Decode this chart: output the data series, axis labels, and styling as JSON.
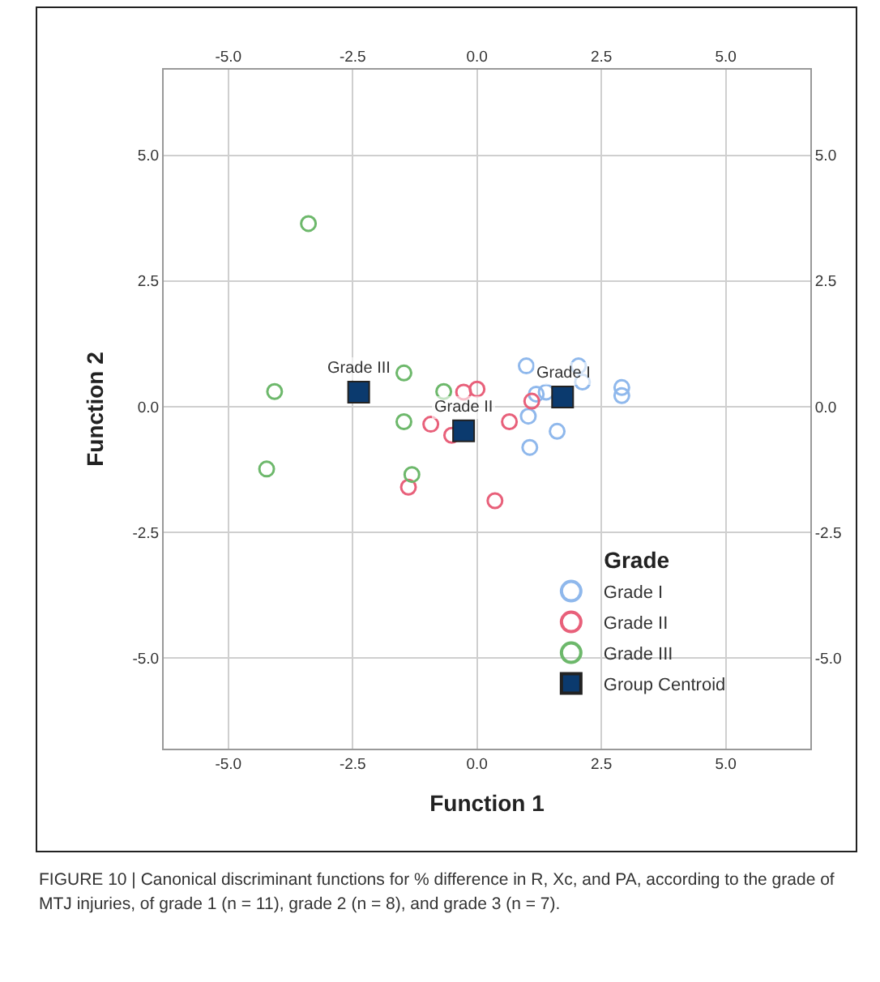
{
  "chart_data": {
    "type": "scatter",
    "xlabel": "Function 1",
    "ylabel": "Function 2",
    "legend_title": "Grade",
    "xlim": [
      -6.3,
      6.7
    ],
    "ylim": [
      -6.8,
      6.7
    ],
    "x2lim": [
      -6.3,
      6.7
    ],
    "y2lim": [
      -6.8,
      6.7
    ],
    "xticks": [
      {
        "value": -5,
        "label": "-5.0"
      },
      {
        "value": -2.5,
        "label": "-2.5"
      },
      {
        "value": 0,
        "label": "0.0"
      },
      {
        "value": 2.5,
        "label": "2.5"
      },
      {
        "value": 5,
        "label": "5.0"
      }
    ],
    "x2ticks": [
      {
        "value": -5,
        "label": "-5.0"
      },
      {
        "value": -2.5,
        "label": "-2.5"
      },
      {
        "value": 0,
        "label": "0.0"
      },
      {
        "value": 2.5,
        "label": "2.5"
      },
      {
        "value": 5,
        "label": "5.0"
      }
    ],
    "yticks": [
      {
        "value": -5,
        "label": "-5.0"
      },
      {
        "value": -2.5,
        "label": "-2.5"
      },
      {
        "value": 0,
        "label": "0.0"
      },
      {
        "value": 2.5,
        "label": "2.5"
      },
      {
        "value": 5,
        "label": "5.0"
      }
    ],
    "y2ticks": [
      {
        "value": -5,
        "label": "-5.0"
      },
      {
        "value": -2.5,
        "label": "-2.5"
      },
      {
        "value": 0,
        "label": "0.0"
      },
      {
        "value": 2.5,
        "label": "2.5"
      },
      {
        "value": 5,
        "label": "5.0"
      }
    ],
    "grid": true,
    "legend": "bottom right",
    "series": [
      {
        "name": "Grade I",
        "color": "#8fb8ec",
        "marker": "circle",
        "x": [
          0.99,
          1.19,
          1.39,
          2.04,
          2.12,
          2.91,
          2.91,
          1.03,
          1.61,
          1.06
        ],
        "values": [
          0.81,
          0.25,
          0.29,
          0.81,
          0.49,
          0.38,
          0.22,
          -0.19,
          -0.49,
          -0.81
        ]
      },
      {
        "name": "Grade II",
        "color": "#e8607a",
        "marker": "circle",
        "x": [
          -0.27,
          0.0,
          -0.93,
          -0.51,
          -1.38,
          0.36,
          0.65,
          1.1
        ],
        "values": [
          0.29,
          0.35,
          -0.35,
          -0.57,
          -1.6,
          -1.87,
          -0.3,
          0.11
        ]
      },
      {
        "name": "Grade III",
        "color": "#6db86b",
        "marker": "circle",
        "x": [
          -4.07,
          -4.23,
          -1.47,
          -0.67,
          -1.47,
          -1.31,
          -3.39
        ],
        "values": [
          0.3,
          -1.24,
          0.67,
          0.3,
          -0.3,
          -1.35,
          3.64
        ]
      },
      {
        "name": "Group Centroid",
        "color": "#0b3a6e",
        "marker": "square",
        "x": [
          -2.38,
          -0.27,
          1.72
        ],
        "values": [
          0.29,
          -0.48,
          0.19
        ]
      }
    ],
    "annotations": [
      {
        "text": "Grade III",
        "x": -2.38,
        "y": 0.29
      },
      {
        "text": "Grade II",
        "x": -0.27,
        "y": -0.48
      },
      {
        "text": "Grade I",
        "x": 1.72,
        "y": 0.19
      },
      "FIGURE 10 | Canonical discriminant functions for % difference in R, Xc, and PA, according to the grade of MTJ injuries, of grade 1 (n = 11), grade 2 (n = 8), and grade 3 (n = 7)."
    ]
  }
}
